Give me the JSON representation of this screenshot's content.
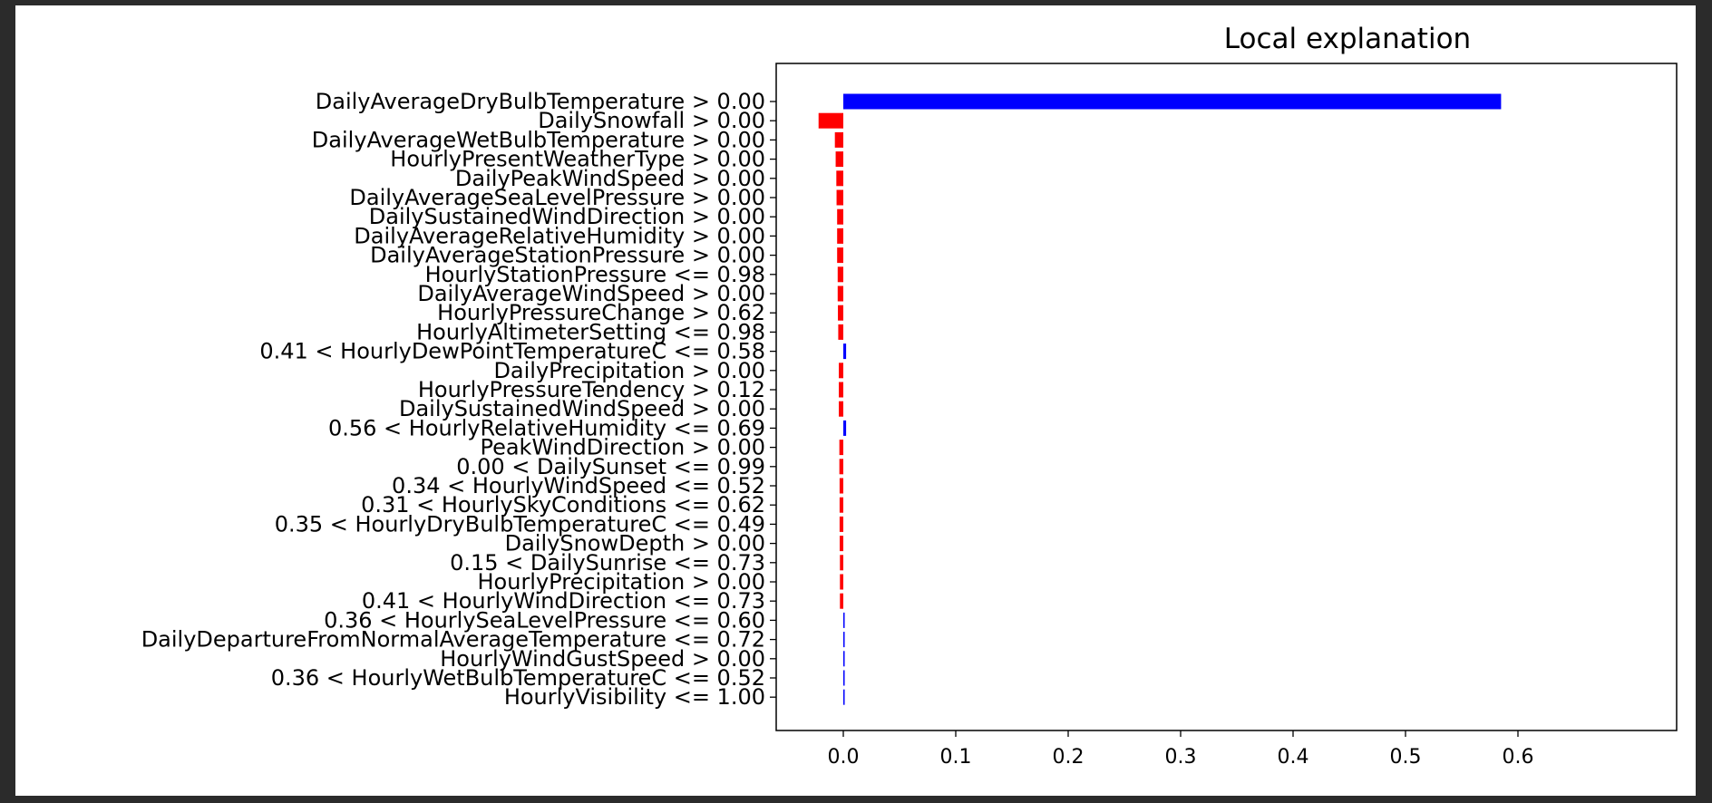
{
  "chart_data": {
    "type": "bar",
    "orientation": "horizontal",
    "title": "Local explanation",
    "xlabel": "",
    "ylabel": "",
    "xlim": [
      -0.05,
      0.61
    ],
    "xticks": [
      0.0,
      0.1,
      0.2,
      0.3,
      0.4,
      0.5,
      0.6
    ],
    "xtick_labels": [
      "0.0",
      "0.1",
      "0.2",
      "0.3",
      "0.4",
      "0.5",
      "0.6"
    ],
    "grid": false,
    "legend": "none",
    "colors": {
      "positive": "#0000ff",
      "negative": "#ff0000"
    },
    "categories": [
      "DailyAverageDryBulbTemperature > 0.00",
      "DailySnowfall > 0.00",
      "DailyAverageWetBulbTemperature > 0.00",
      "HourlyPresentWeatherType > 0.00",
      "DailyPeakWindSpeed > 0.00",
      "DailyAverageSeaLevelPressure > 0.00",
      "DailySustainedWindDirection > 0.00",
      "DailyAverageRelativeHumidity > 0.00",
      "DailyAverageStationPressure > 0.00",
      "HourlyStationPressure <= 0.98",
      "DailyAverageWindSpeed > 0.00",
      "HourlyPressureChange > 0.62",
      "HourlyAltimeterSetting <= 0.98",
      "0.41 < HourlyDewPointTemperatureC <= 0.58",
      "DailyPrecipitation > 0.00",
      "HourlyPressureTendency > 0.12",
      "DailySustainedWindSpeed > 0.00",
      "0.56 < HourlyRelativeHumidity <= 0.69",
      "PeakWindDirection > 0.00",
      "0.00 < DailySunset <= 0.99",
      "0.34 < HourlyWindSpeed <= 0.52",
      "0.31 < HourlySkyConditions <= 0.62",
      "0.35 < HourlyDryBulbTemperatureC <= 0.49",
      "DailySnowDepth > 0.00",
      "0.15 < DailySunrise <= 0.73",
      "HourlyPrecipitation > 0.00",
      "0.41 < HourlyWindDirection <= 0.73",
      "0.36 < HourlySeaLevelPressure <= 0.60",
      "DailyDepartureFromNormalAverageTemperature <= 0.72",
      "HourlyWindGustSpeed > 0.00",
      "0.36 < HourlyWetBulbTemperatureC <= 0.52",
      "HourlyVisibility <= 1.00"
    ],
    "values": [
      0.585,
      -0.022,
      -0.0075,
      -0.0068,
      -0.0062,
      -0.006,
      -0.0055,
      -0.0055,
      -0.0055,
      -0.005,
      -0.005,
      -0.0048,
      -0.0045,
      0.0025,
      -0.004,
      -0.004,
      -0.004,
      0.0025,
      -0.0035,
      -0.0035,
      -0.0033,
      -0.0033,
      -0.0033,
      -0.0032,
      -0.003,
      -0.003,
      -0.003,
      0.0012,
      0.0012,
      0.001,
      0.001,
      0.001
    ]
  }
}
